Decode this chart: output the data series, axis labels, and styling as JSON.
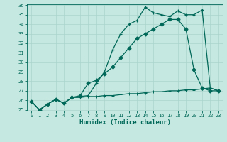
{
  "xlabel": "Humidex (Indice chaleur)",
  "bg_color": "#c5e8e0",
  "grid_color": "#aad4cc",
  "line_color": "#006858",
  "ylim": [
    25,
    36
  ],
  "xlim": [
    -0.5,
    23.5
  ],
  "yticks": [
    25,
    26,
    27,
    28,
    29,
    30,
    31,
    32,
    33,
    34,
    35,
    36
  ],
  "xticks": [
    0,
    1,
    2,
    3,
    4,
    5,
    6,
    7,
    8,
    9,
    10,
    11,
    12,
    13,
    14,
    15,
    16,
    17,
    18,
    19,
    20,
    21,
    22,
    23
  ],
  "s1_x": [
    0,
    1,
    2,
    3,
    4,
    5,
    6,
    7,
    8,
    9,
    10,
    11,
    12,
    13,
    14,
    15,
    16,
    17,
    18,
    19,
    20,
    21,
    22,
    23
  ],
  "s1_y": [
    25.9,
    25.0,
    25.6,
    26.1,
    25.7,
    26.3,
    26.4,
    26.5,
    27.8,
    29.0,
    31.3,
    33.0,
    34.0,
    34.4,
    35.8,
    35.2,
    35.0,
    34.8,
    35.4,
    35.0,
    35.0,
    35.5,
    27.3,
    27.0
  ],
  "s2_x": [
    0,
    1,
    2,
    3,
    4,
    5,
    6,
    7,
    8,
    9,
    10,
    11,
    12,
    13,
    14,
    15,
    16,
    17,
    18,
    19,
    20,
    21,
    22,
    23
  ],
  "s2_y": [
    25.9,
    25.0,
    25.6,
    26.1,
    25.7,
    26.3,
    26.5,
    27.8,
    28.1,
    28.8,
    29.5,
    30.5,
    31.5,
    32.5,
    33.0,
    33.5,
    34.0,
    34.5,
    34.5,
    33.5,
    29.2,
    27.3,
    27.0,
    27.0
  ],
  "s3_x": [
    0,
    1,
    2,
    3,
    4,
    5,
    6,
    7,
    8,
    9,
    10,
    11,
    12,
    13,
    14,
    15,
    16,
    17,
    18,
    19,
    20,
    21,
    22,
    23
  ],
  "s3_y": [
    25.9,
    25.0,
    25.6,
    26.1,
    25.7,
    26.3,
    26.3,
    26.4,
    26.4,
    26.5,
    26.5,
    26.6,
    26.7,
    26.7,
    26.8,
    26.9,
    26.9,
    27.0,
    27.0,
    27.1,
    27.1,
    27.2,
    27.3,
    27.0
  ]
}
